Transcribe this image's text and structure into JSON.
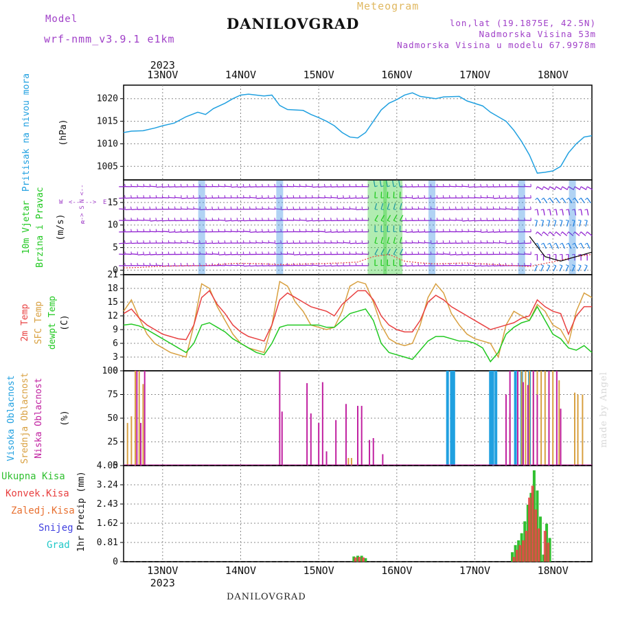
{
  "header": {
    "model_label": "Model",
    "model_name": "wrf-nmm_v3.9.1  e1km",
    "title": "Meteogram",
    "station": "DANILOVGRAD",
    "location_lines": [
      "lon,lat (19.1875E, 42.5N)",
      "Nadmorska Visina 53m",
      "Nadmorska Visina u modelu 67.9978m"
    ],
    "footer_station": "DANILOVGRAD",
    "credit": "made by Angel"
  },
  "colors": {
    "pressure": "#20a0e0",
    "wind_green": "#20c820",
    "temp2m": "#e84040",
    "sfc_temp": "#d8a040",
    "dewpt": "#20c820",
    "high_cloud": "#20a0e0",
    "mid_cloud": "#d8a040",
    "low_cloud": "#c020a0",
    "total_precip": "#30c030",
    "conv_precip": "#e84040",
    "frozen_precip": "#e87030",
    "snow": "#4040e0",
    "graupel": "#20c8c8",
    "wind_barb": "#9020d0",
    "wind_barb_alt": "#2080e0"
  },
  "chart_data": [
    {
      "type": "line",
      "panel": "pressure",
      "ylabel_color_text": "Pritisak na nivou mora",
      "ylabel_unit": "(hPa)",
      "yticks": [
        1005,
        1010,
        1015,
        1020
      ],
      "ylim": [
        1002,
        1023
      ],
      "x_start_day": "12.5",
      "x_days": [
        "13NOV",
        "14NOV",
        "15NOV",
        "16NOV",
        "17NOV",
        "18NOV"
      ],
      "x_year": "2023",
      "x": [
        12.5,
        12.6,
        12.75,
        12.9,
        13.0,
        13.15,
        13.3,
        13.45,
        13.55,
        13.65,
        13.8,
        13.9,
        14.0,
        14.1,
        14.3,
        14.4,
        14.5,
        14.6,
        14.8,
        14.9,
        15.0,
        15.1,
        15.2,
        15.3,
        15.4,
        15.5,
        15.6,
        15.7,
        15.8,
        15.9,
        16.0,
        16.1,
        16.2,
        16.3,
        16.5,
        16.6,
        16.8,
        16.9,
        17.1,
        17.2,
        17.3,
        17.4,
        17.5,
        17.6,
        17.7,
        17.8,
        17.9,
        18.0,
        18.1,
        18.2,
        18.3,
        18.4,
        18.5
      ],
      "series": [
        {
          "values": [
            1012.5,
            1012.8,
            1012.9,
            1013.5,
            1014.0,
            1014.6,
            1016.0,
            1017.0,
            1016.5,
            1017.8,
            1019.0,
            1020.0,
            1020.8,
            1021.0,
            1020.6,
            1020.8,
            1018.5,
            1017.6,
            1017.4,
            1016.5,
            1015.8,
            1015.0,
            1014.0,
            1012.5,
            1011.5,
            1011.3,
            1012.5,
            1015.0,
            1017.5,
            1019.0,
            1019.8,
            1020.8,
            1021.3,
            1020.5,
            1020.0,
            1020.4,
            1020.5,
            1019.5,
            1018.4,
            1017.0,
            1016.0,
            1015.0,
            1013.0,
            1010.5,
            1007.5,
            1003.5,
            1003.7,
            1004.0,
            1005.0,
            1008.0,
            1010.0,
            1011.5,
            1011.8
          ]
        }
      ]
    },
    {
      "type": "barbs",
      "panel": "wind",
      "ylabel_lines": [
        "10m Vjetar",
        "Brzina i Pravac"
      ],
      "ylabel_unit": "(m/s)",
      "compass": {
        "n": "N",
        "e": "E",
        "s": "S",
        "w": "W",
        "arrow_left": "<--",
        "arrow_right": "-->",
        "alpha": "α"
      },
      "yticks": [
        0,
        5,
        10,
        15
      ],
      "ylim": [
        -1,
        20
      ],
      "x": [
        12.5,
        12.7,
        12.9,
        13.1,
        13.3,
        13.5,
        13.7,
        13.9,
        14.1,
        14.3,
        14.5,
        14.7,
        14.9,
        15.1,
        15.3,
        15.5,
        15.7,
        15.9,
        16.1,
        16.3,
        16.5,
        16.7,
        16.9,
        17.1,
        17.3,
        17.5,
        17.7,
        17.9,
        18.1,
        18.3,
        18.5
      ],
      "speed_red": [
        0.5,
        0.6,
        0.8,
        0.9,
        1.0,
        1.0,
        1.2,
        1.5,
        1.5,
        1.4,
        1.2,
        1.3,
        1.4,
        1.5,
        1.6,
        1.8,
        3.0,
        3.5,
        2.0,
        1.6,
        1.4,
        1.5,
        1.6,
        1.4,
        1.2,
        1.0,
        0.8,
        1.5,
        2.2,
        3.0,
        3.5
      ],
      "speed_gust": [
        null,
        null,
        null,
        null,
        null,
        null,
        null,
        null,
        null,
        null,
        null,
        null,
        null,
        null,
        null,
        null,
        null,
        null,
        null,
        null,
        null,
        null,
        null,
        null,
        null,
        null,
        7.5,
        3.0,
        2.0,
        3.0,
        4.0
      ]
    },
    {
      "type": "line",
      "panel": "temperature",
      "ylabel_lines": [
        "2m Temp",
        "SFC Temp",
        "dewpt Temp"
      ],
      "ylabel_unit": "(C)",
      "yticks": [
        0,
        3,
        6,
        9,
        12,
        15,
        18,
        21
      ],
      "ylim": [
        0,
        21
      ],
      "x": [
        12.5,
        12.6,
        12.7,
        12.8,
        12.9,
        13.0,
        13.1,
        13.2,
        13.3,
        13.4,
        13.5,
        13.6,
        13.7,
        13.8,
        13.9,
        14.0,
        14.1,
        14.2,
        14.3,
        14.4,
        14.5,
        14.6,
        14.7,
        14.8,
        14.9,
        15.0,
        15.1,
        15.2,
        15.3,
        15.4,
        15.5,
        15.6,
        15.7,
        15.8,
        15.9,
        16.0,
        16.1,
        16.2,
        16.3,
        16.4,
        16.5,
        16.6,
        16.7,
        16.8,
        16.9,
        17.0,
        17.1,
        17.2,
        17.3,
        17.4,
        17.5,
        17.6,
        17.7,
        17.8,
        17.9,
        18.0,
        18.1,
        18.2,
        18.3,
        18.4,
        18.5
      ],
      "series": [
        {
          "name": "2m Temp",
          "values": [
            12.5,
            13.5,
            11.5,
            10.0,
            9.0,
            8.0,
            7.5,
            7.0,
            6.8,
            10.0,
            16.0,
            17.5,
            14.5,
            12.5,
            10.0,
            8.5,
            7.5,
            7.0,
            6.5,
            10.0,
            15.5,
            17.0,
            16.0,
            15.0,
            14.0,
            13.5,
            13.0,
            12.0,
            14.5,
            16.0,
            17.5,
            17.5,
            15.5,
            12.0,
            10.0,
            9.0,
            8.5,
            8.5,
            11.0,
            15.0,
            16.5,
            15.5,
            14.0,
            13.0,
            12.0,
            11.0,
            10.0,
            9.0,
            9.5,
            10.0,
            10.5,
            11.5,
            12.0,
            15.5,
            14.0,
            13.0,
            12.5,
            8.0,
            12.0,
            14.0,
            14.0
          ]
        },
        {
          "name": "SFC Temp",
          "values": [
            13.0,
            15.5,
            11.5,
            8.0,
            6.0,
            5.0,
            4.0,
            3.5,
            3.0,
            10.0,
            19.0,
            18.0,
            14.0,
            11.0,
            8.0,
            6.0,
            5.0,
            4.5,
            4.0,
            10.0,
            19.5,
            18.5,
            15.0,
            13.0,
            10.0,
            9.5,
            9.0,
            9.5,
            13.0,
            18.5,
            19.5,
            19.0,
            15.0,
            10.0,
            7.0,
            6.0,
            5.5,
            6.0,
            10.0,
            16.0,
            19.0,
            17.0,
            12.5,
            10.0,
            8.0,
            7.0,
            6.5,
            6.0,
            3.0,
            10.0,
            13.0,
            12.0,
            11.0,
            14.5,
            13.0,
            10.0,
            9.0,
            6.0,
            13.0,
            17.0,
            16.0
          ]
        },
        {
          "name": "dewpt Temp",
          "values": [
            10.0,
            10.2,
            9.8,
            9.0,
            8.0,
            7.0,
            6.0,
            5.0,
            4.0,
            6.0,
            10.0,
            10.5,
            9.5,
            8.5,
            7.0,
            6.0,
            5.0,
            4.0,
            3.5,
            6.0,
            9.5,
            10.0,
            10.0,
            10.0,
            10.0,
            10.0,
            9.5,
            9.5,
            11.0,
            12.5,
            13.0,
            13.5,
            11.0,
            6.0,
            4.0,
            3.5,
            3.0,
            2.5,
            4.5,
            6.5,
            7.5,
            7.5,
            7.0,
            6.5,
            6.5,
            6.0,
            5.0,
            2.0,
            4.0,
            8.0,
            9.5,
            10.5,
            11.0,
            14.0,
            11.0,
            8.0,
            7.0,
            5.0,
            4.5,
            5.5,
            4.0
          ]
        }
      ]
    },
    {
      "type": "bar",
      "panel": "clouds",
      "ylabel_lines": [
        "Visoka Oblacnost",
        "Srednja Oblacnost",
        "Niska Oblacnost"
      ],
      "ylabel_unit": "(%)",
      "yticks": [
        0,
        25,
        50,
        75,
        100
      ],
      "ylim": [
        0,
        100
      ],
      "series": [
        {
          "name": "Visoka Oblacnost",
          "bars": [
            [
              16.65,
              100
            ],
            [
              16.7,
              100
            ],
            [
              16.73,
              100
            ],
            [
              17.2,
              100
            ],
            [
              17.23,
              100
            ],
            [
              17.27,
              100
            ],
            [
              17.52,
              100
            ],
            [
              17.6,
              100
            ],
            [
              17.7,
              100
            ]
          ]
        },
        {
          "name": "Srednja Oblacnost",
          "bars": [
            [
              12.55,
              45
            ],
            [
              12.6,
              52
            ],
            [
              12.65,
              100
            ],
            [
              12.7,
              100
            ],
            [
              12.75,
              86
            ],
            [
              15.38,
              8
            ],
            [
              15.42,
              8
            ],
            [
              17.45,
              55
            ],
            [
              17.55,
              65
            ],
            [
              17.6,
              100
            ],
            [
              17.65,
              100
            ],
            [
              17.7,
              100
            ],
            [
              17.75,
              100
            ],
            [
              17.8,
              100
            ],
            [
              17.85,
              100
            ],
            [
              17.9,
              100
            ],
            [
              18.0,
              100
            ],
            [
              18.08,
              90
            ],
            [
              18.28,
              77
            ],
            [
              18.32,
              75
            ],
            [
              18.38,
              75
            ]
          ]
        },
        {
          "name": "Niska Oblacnost",
          "bars": [
            [
              12.67,
              100
            ],
            [
              12.72,
              45
            ],
            [
              12.77,
              100
            ],
            [
              14.5,
              100
            ],
            [
              14.53,
              57
            ],
            [
              14.85,
              87
            ],
            [
              14.9,
              55
            ],
            [
              15.0,
              45
            ],
            [
              15.05,
              88
            ],
            [
              15.1,
              15
            ],
            [
              15.22,
              48
            ],
            [
              15.35,
              65
            ],
            [
              15.5,
              63
            ],
            [
              15.55,
              63
            ],
            [
              15.65,
              27
            ],
            [
              15.7,
              29
            ],
            [
              15.82,
              12
            ],
            [
              17.4,
              75
            ],
            [
              17.45,
              100
            ],
            [
              17.55,
              100
            ],
            [
              17.62,
              88
            ],
            [
              17.68,
              85
            ],
            [
              17.75,
              100
            ],
            [
              17.8,
              75
            ],
            [
              17.95,
              100
            ],
            [
              18.05,
              100
            ],
            [
              18.1,
              60
            ]
          ]
        }
      ]
    },
    {
      "type": "bar",
      "panel": "precipitation",
      "legend": [
        "Ukupna Kisa",
        "Konvek.Kisa",
        "Zaledj.Kisa",
        "Snijeg",
        "Grad"
      ],
      "ylabel": "1hr Precip (mm)",
      "yticks": [
        "0",
        "0.81",
        "1.62",
        "2.43",
        "3.24",
        "4.05"
      ],
      "ylim": [
        0,
        4.05
      ],
      "series": [
        {
          "name": "Ukupna Kisa",
          "bars": [
            [
              15.45,
              0.22
            ],
            [
              15.5,
              0.25
            ],
            [
              15.55,
              0.25
            ],
            [
              15.6,
              0.15
            ],
            [
              17.48,
              0.4
            ],
            [
              17.52,
              0.7
            ],
            [
              17.56,
              0.9
            ],
            [
              17.6,
              1.2
            ],
            [
              17.64,
              1.7
            ],
            [
              17.68,
              2.4
            ],
            [
              17.72,
              2.9
            ],
            [
              17.76,
              3.85
            ],
            [
              17.8,
              3.0
            ],
            [
              17.84,
              1.9
            ],
            [
              17.88,
              0.3
            ],
            [
              17.92,
              1.6
            ],
            [
              17.96,
              1.0
            ]
          ]
        },
        {
          "name": "Konvek.Kisa",
          "bars": [
            [
              15.47,
              0.18
            ],
            [
              15.52,
              0.2
            ],
            [
              15.57,
              0.18
            ],
            [
              17.5,
              0.2
            ],
            [
              17.54,
              0.5
            ],
            [
              17.58,
              0.7
            ],
            [
              17.62,
              0.9
            ],
            [
              17.66,
              1.3
            ],
            [
              17.7,
              2.7
            ],
            [
              17.74,
              3.2
            ],
            [
              17.78,
              2.2
            ],
            [
              17.82,
              1.4
            ],
            [
              17.9,
              1.3
            ],
            [
              17.94,
              0.8
            ]
          ]
        }
      ]
    }
  ]
}
